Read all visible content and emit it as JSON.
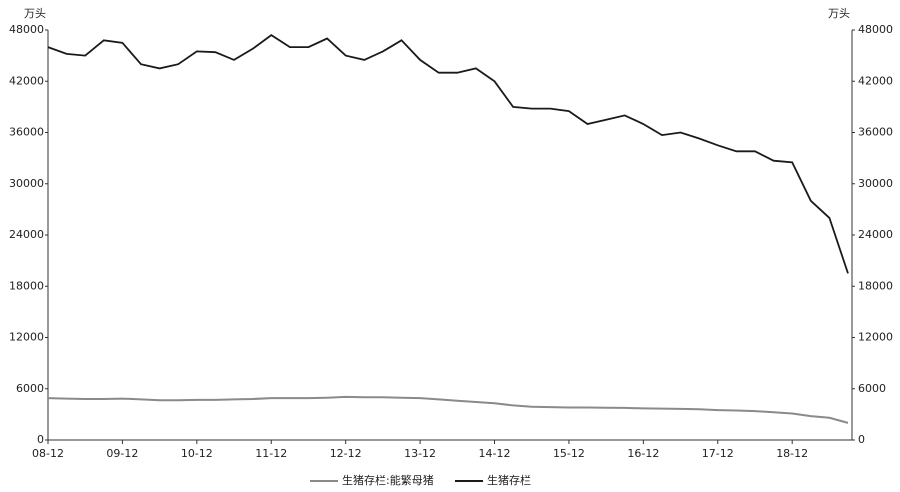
{
  "chart_data": {
    "type": "line",
    "y_label": "万头",
    "y2_label": "万头",
    "categories": [
      "08-12",
      null,
      null,
      null,
      "09-12",
      null,
      null,
      null,
      "10-12",
      null,
      null,
      null,
      "11-12",
      null,
      null,
      null,
      "12-12",
      null,
      null,
      null,
      "13-12",
      null,
      null,
      null,
      "14-12",
      null,
      null,
      null,
      "15-12",
      null,
      null,
      null,
      "16-12",
      null,
      null,
      null,
      "17-12",
      null,
      null,
      null,
      "18-12",
      null,
      null,
      null
    ],
    "series": [
      {
        "name": "生猪存栏:能繁母猪",
        "color": "#8a8a8a",
        "axis": "y",
        "values": [
          4900,
          4850,
          4800,
          4800,
          4850,
          4750,
          4650,
          4650,
          4700,
          4700,
          4750,
          4800,
          4900,
          4900,
          4900,
          4950,
          5050,
          5000,
          5000,
          4950,
          4900,
          4750,
          4600,
          4450,
          4300,
          4050,
          3900,
          3850,
          3800,
          3800,
          3780,
          3760,
          3700,
          3680,
          3640,
          3600,
          3500,
          3450,
          3380,
          3250,
          3100,
          2800,
          2600,
          2000
        ]
      },
      {
        "name": "生猪存栏",
        "color": "#1a1a1a",
        "axis": "y2",
        "values": [
          46000,
          45200,
          45000,
          46800,
          46500,
          44000,
          43500,
          44000,
          45500,
          45400,
          44500,
          45800,
          47400,
          46000,
          46000,
          47000,
          45000,
          44500,
          45500,
          46800,
          44500,
          43000,
          43000,
          43500,
          42000,
          39000,
          38800,
          38800,
          38500,
          37000,
          37500,
          38000,
          37000,
          35700,
          36000,
          35300,
          34500,
          33800,
          33800,
          32700,
          32500,
          28000,
          26000,
          19500
        ]
      }
    ],
    "ylim": [
      0,
      48000
    ],
    "yticks": [
      0,
      6000,
      12000,
      18000,
      24000,
      30000,
      36000,
      42000,
      48000
    ],
    "y2lim": [
      0,
      48000
    ],
    "y2ticks": [
      0,
      6000,
      12000,
      18000,
      24000,
      30000,
      36000,
      42000,
      48000
    ]
  }
}
